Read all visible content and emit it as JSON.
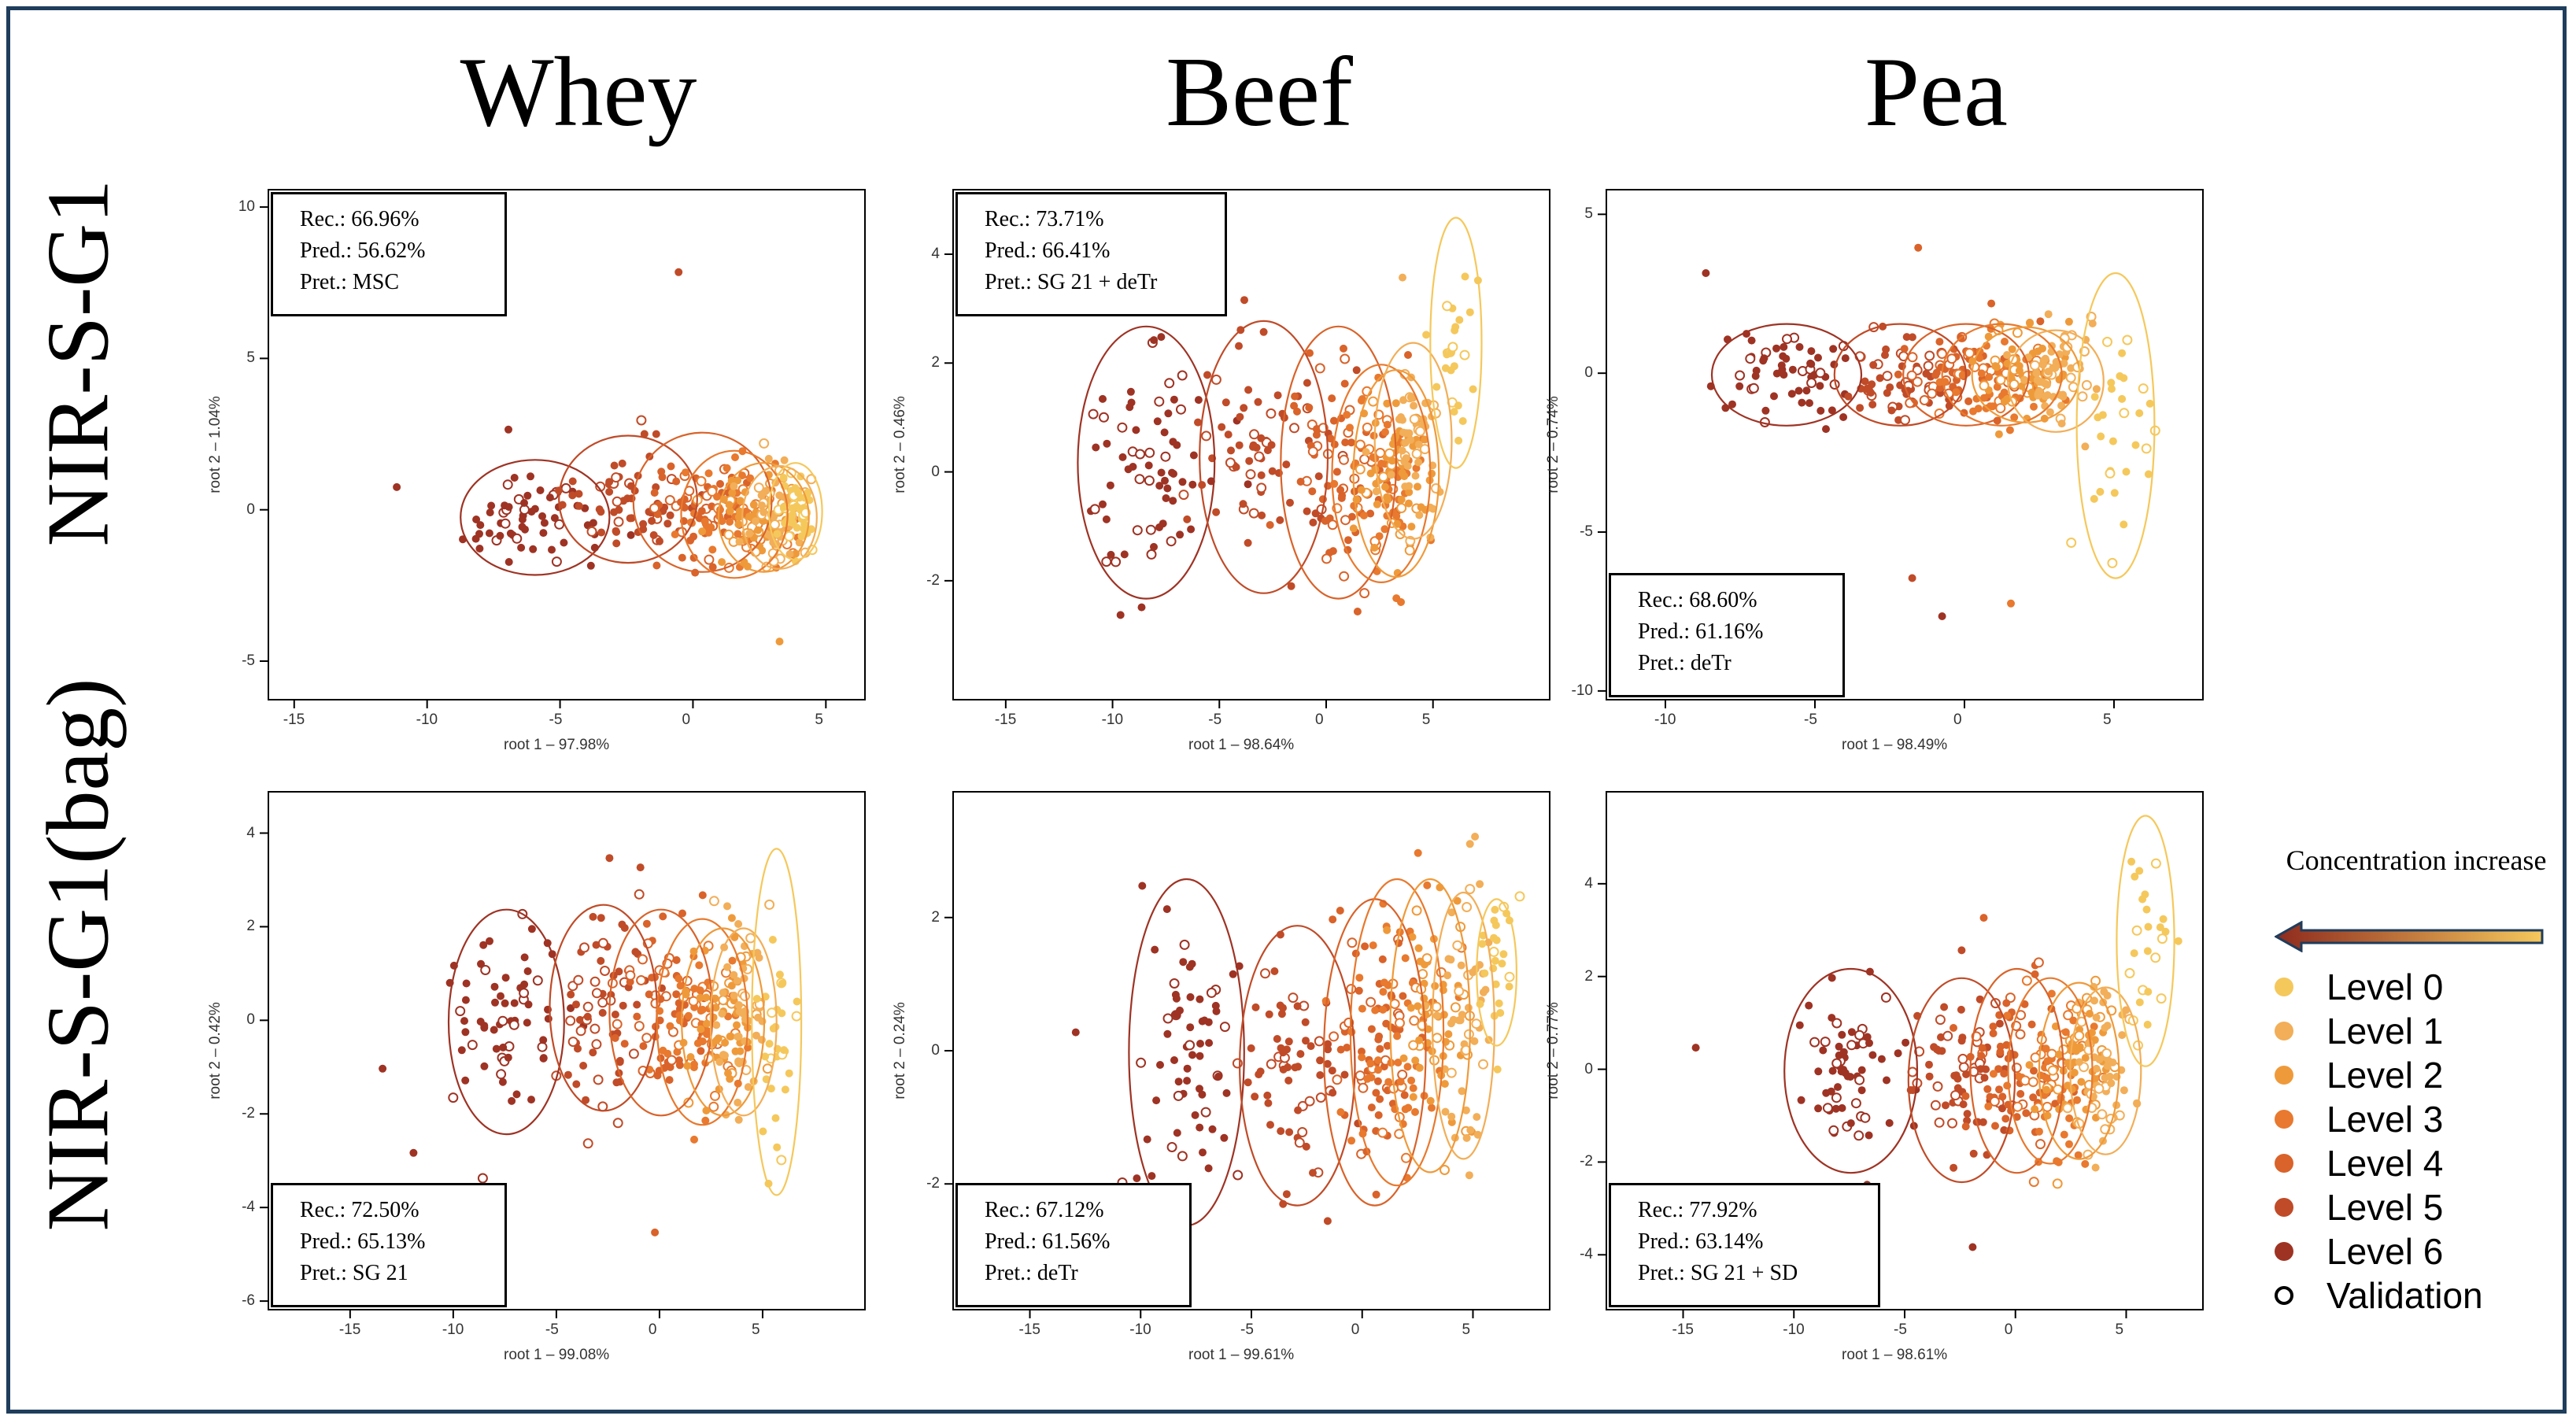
{
  "figure": {
    "column_titles": [
      "Whey",
      "Beef",
      "Pea"
    ],
    "row_titles": [
      "NIR-S-G1",
      "NIR-S-G1(bag)"
    ]
  },
  "legend": {
    "title": "Concentration increase",
    "items": [
      {
        "label": "Level 0",
        "color": "#f5c85c"
      },
      {
        "label": "Level 1",
        "color": "#f2ae58"
      },
      {
        "label": "Level 2",
        "color": "#ef9a3a"
      },
      {
        "label": "Level 3",
        "color": "#e8792e"
      },
      {
        "label": "Level 4",
        "color": "#d9632a"
      },
      {
        "label": "Level 5",
        "color": "#c04b28"
      },
      {
        "label": "Level 6",
        "color": "#9e3324"
      },
      {
        "label": "Validation",
        "color": "#000000",
        "hollow": true
      }
    ],
    "arrow_gradient": [
      "#8e2a1e",
      "#f5c85c"
    ]
  },
  "chart_data": [
    {
      "id": "whey-s-g1",
      "type": "scatter",
      "protein": "Whey",
      "device": "NIR-S-G1",
      "xlabel": "root 1 – 97.98%",
      "ylabel": "root 2 – 1.04%",
      "xlim": [
        -16,
        6.5
      ],
      "ylim": [
        -6.3,
        10.6
      ],
      "xticks": [
        -15,
        -10,
        -5,
        0,
        5
      ],
      "yticks": [
        -5,
        0,
        5,
        10
      ],
      "info": {
        "rec": "Rec.: 66.96%",
        "pred": "Pred.: 56.62%",
        "pret": "Pret.: MSC"
      },
      "info_position": "top-left",
      "groups": [
        {
          "level": 6,
          "center": [
            -6.0,
            -0.2
          ],
          "rx": 2.8,
          "ry": 1.9,
          "sx": 1.3,
          "sy": 0.8,
          "n": 60
        },
        {
          "level": 5,
          "center": [
            -2.5,
            0.4
          ],
          "rx": 2.6,
          "ry": 2.1,
          "sx": 1.2,
          "sy": 0.9,
          "n": 60
        },
        {
          "level": 4,
          "center": [
            0.3,
            0.3
          ],
          "rx": 2.6,
          "ry": 2.3,
          "sx": 1.1,
          "sy": 0.9,
          "n": 60
        },
        {
          "level": 3,
          "center": [
            1.5,
            -0.1
          ],
          "rx": 2.0,
          "ry": 2.1,
          "sx": 0.9,
          "sy": 0.8,
          "n": 60
        },
        {
          "level": 2,
          "center": [
            2.6,
            -0.2
          ],
          "rx": 1.7,
          "ry": 1.8,
          "sx": 0.8,
          "sy": 0.7,
          "n": 60
        },
        {
          "level": 1,
          "center": [
            3.2,
            -0.2
          ],
          "rx": 1.4,
          "ry": 1.7,
          "sx": 0.6,
          "sy": 0.7,
          "n": 60
        },
        {
          "level": 0,
          "center": [
            3.8,
            0.0
          ],
          "rx": 1.0,
          "ry": 1.6,
          "sx": 0.4,
          "sy": 0.6,
          "n": 50
        }
      ],
      "outliers": [
        [
          -0.6,
          7.9,
          5
        ],
        [
          -11.2,
          0.8,
          6
        ],
        [
          3.2,
          -4.3,
          2
        ],
        [
          -7.0,
          2.7,
          6
        ]
      ]
    },
    {
      "id": "beef-s-g1",
      "type": "scatter",
      "protein": "Beef",
      "device": "NIR-S-G1",
      "xlabel": "root 1 – 98.64%",
      "ylabel": "root 2 – 0.46%",
      "xlim": [
        -17.5,
        10.5
      ],
      "ylim": [
        -4.2,
        5.2
      ],
      "xticks": [
        -15,
        -10,
        -5,
        0,
        5
      ],
      "yticks": [
        -2,
        0,
        2,
        4
      ],
      "info": {
        "rec": "Rec.: 73.71%",
        "pred": "Pred.: 66.41%",
        "pret": "Pret.: SG 21 + deTr"
      },
      "info_position": "top-left",
      "groups": [
        {
          "level": 6,
          "center": [
            -8.5,
            0.2
          ],
          "rx": 3.2,
          "ry": 2.5,
          "sx": 1.5,
          "sy": 1.1,
          "n": 70
        },
        {
          "level": 5,
          "center": [
            -3.0,
            0.3
          ],
          "rx": 3.0,
          "ry": 2.5,
          "sx": 1.4,
          "sy": 1.0,
          "n": 70
        },
        {
          "level": 4,
          "center": [
            0.5,
            0.2
          ],
          "rx": 2.7,
          "ry": 2.5,
          "sx": 1.3,
          "sy": 1.0,
          "n": 70
        },
        {
          "level": 3,
          "center": [
            2.5,
            0.0
          ],
          "rx": 2.3,
          "ry": 2.0,
          "sx": 1.0,
          "sy": 0.9,
          "n": 70
        },
        {
          "level": 2,
          "center": [
            3.2,
            0.0
          ],
          "rx": 2.0,
          "ry": 1.9,
          "sx": 0.9,
          "sy": 0.8,
          "n": 60
        },
        {
          "level": 1,
          "center": [
            4.0,
            0.6
          ],
          "rx": 1.8,
          "ry": 1.8,
          "sx": 0.8,
          "sy": 0.7,
          "n": 50
        },
        {
          "level": 0,
          "center": [
            6.0,
            2.4
          ],
          "rx": 1.2,
          "ry": 2.3,
          "sx": 0.5,
          "sy": 0.9,
          "n": 25
        }
      ],
      "outliers": [
        [
          -9.7,
          -2.6,
          6
        ],
        [
          3.5,
          3.6,
          1
        ],
        [
          -3.0,
          2.6,
          5
        ]
      ]
    },
    {
      "id": "pea-s-g1",
      "type": "scatter",
      "protein": "Pea",
      "device": "NIR-S-G1",
      "xlabel": "root 1 – 98.49%",
      "ylabel": "root 2 – 0.74%",
      "xlim": [
        -12.0,
        8.0
      ],
      "ylim": [
        -10.3,
        5.8
      ],
      "xticks": [
        -10,
        -5,
        0,
        5
      ],
      "yticks": [
        -10,
        -5,
        0,
        5
      ],
      "info": {
        "rec": "Rec.: 68.60%",
        "pred": "Pred.: 61.16%",
        "pret": "Pret.: deTr"
      },
      "info_position": "bottom-left",
      "groups": [
        {
          "level": 6,
          "center": [
            -6.0,
            0.0
          ],
          "rx": 2.5,
          "ry": 1.6,
          "sx": 1.2,
          "sy": 0.7,
          "n": 60
        },
        {
          "level": 5,
          "center": [
            -2.2,
            0.0
          ],
          "rx": 2.2,
          "ry": 1.6,
          "sx": 1.0,
          "sy": 0.7,
          "n": 60
        },
        {
          "level": 4,
          "center": [
            0.0,
            0.0
          ],
          "rx": 2.1,
          "ry": 1.6,
          "sx": 1.0,
          "sy": 0.7,
          "n": 60
        },
        {
          "level": 3,
          "center": [
            1.2,
            0.0
          ],
          "rx": 2.0,
          "ry": 1.6,
          "sx": 0.9,
          "sy": 0.7,
          "n": 60
        },
        {
          "level": 2,
          "center": [
            2.0,
            0.0
          ],
          "rx": 1.8,
          "ry": 1.5,
          "sx": 0.8,
          "sy": 0.7,
          "n": 60
        },
        {
          "level": 1,
          "center": [
            3.0,
            -0.2
          ],
          "rx": 1.6,
          "ry": 1.6,
          "sx": 0.7,
          "sy": 0.8,
          "n": 60
        },
        {
          "level": 0,
          "center": [
            5.0,
            -1.6
          ],
          "rx": 1.3,
          "ry": 4.8,
          "sx": 0.5,
          "sy": 2.0,
          "n": 30
        }
      ],
      "outliers": [
        [
          -1.8,
          -6.4,
          5
        ],
        [
          -0.8,
          -7.6,
          6
        ],
        [
          1.5,
          -7.2,
          3
        ],
        [
          -1.6,
          4.0,
          4
        ],
        [
          -8.7,
          3.2,
          6
        ]
      ]
    },
    {
      "id": "whey-bag",
      "type": "scatter",
      "protein": "Whey",
      "device": "NIR-S-G1(bag)",
      "xlabel": "root 1 – 99.08%",
      "ylabel": "root 2 – 0.42%",
      "xlim": [
        -19.0,
        10.0
      ],
      "ylim": [
        -6.2,
        4.9
      ],
      "xticks": [
        -15,
        -10,
        -5,
        0,
        5
      ],
      "yticks": [
        -6,
        -4,
        -2,
        0,
        2,
        4
      ],
      "info": {
        "rec": "Rec.: 72.50%",
        "pred": "Pred.: 65.13%",
        "pret": "Pret.: SG 21"
      },
      "info_position": "bottom-left",
      "groups": [
        {
          "level": 6,
          "center": [
            -7.5,
            0.0
          ],
          "rx": 2.8,
          "ry": 2.4,
          "sx": 1.3,
          "sy": 1.1,
          "n": 65
        },
        {
          "level": 5,
          "center": [
            -2.8,
            0.3
          ],
          "rx": 2.6,
          "ry": 2.2,
          "sx": 1.2,
          "sy": 1.0,
          "n": 65
        },
        {
          "level": 4,
          "center": [
            0.0,
            0.2
          ],
          "rx": 2.5,
          "ry": 2.2,
          "sx": 1.1,
          "sy": 1.0,
          "n": 65
        },
        {
          "level": 3,
          "center": [
            2.0,
            0.0
          ],
          "rx": 2.2,
          "ry": 2.2,
          "sx": 1.0,
          "sy": 0.9,
          "n": 65
        },
        {
          "level": 2,
          "center": [
            3.0,
            0.0
          ],
          "rx": 2.0,
          "ry": 2.0,
          "sx": 0.9,
          "sy": 0.9,
          "n": 60
        },
        {
          "level": 1,
          "center": [
            4.0,
            0.0
          ],
          "rx": 1.6,
          "ry": 2.0,
          "sx": 0.7,
          "sy": 0.9,
          "n": 55
        },
        {
          "level": 0,
          "center": [
            5.6,
            0.0
          ],
          "rx": 1.2,
          "ry": 3.7,
          "sx": 0.5,
          "sy": 1.4,
          "n": 30
        }
      ],
      "outliers": [
        [
          -13.5,
          -1.0,
          6
        ],
        [
          -12.0,
          -2.8,
          6
        ],
        [
          -0.3,
          -4.5,
          4
        ],
        [
          -1.0,
          3.3,
          5
        ],
        [
          -2.5,
          3.5,
          5
        ]
      ]
    },
    {
      "id": "beef-bag",
      "type": "scatter",
      "protein": "Beef",
      "device": "NIR-S-G1(bag)",
      "xlabel": "root 1 – 99.61%",
      "ylabel": "root 2 – 0.24%",
      "xlim": [
        -18.5,
        8.5
      ],
      "ylim": [
        -3.9,
        3.9
      ],
      "xticks": [
        -15,
        -10,
        -5,
        0,
        5
      ],
      "yticks": [
        -2,
        0,
        2
      ],
      "info": {
        "rec": "Rec.: 67.12%",
        "pred": "Pred.: 61.56%",
        "pret": "Pret.: deTr"
      },
      "info_position": "bottom-left",
      "groups": [
        {
          "level": 6,
          "center": [
            -8.0,
            0.0
          ],
          "rx": 2.6,
          "ry": 2.6,
          "sx": 1.3,
          "sy": 1.1,
          "n": 65
        },
        {
          "level": 5,
          "center": [
            -3.0,
            -0.2
          ],
          "rx": 2.6,
          "ry": 2.1,
          "sx": 1.2,
          "sy": 0.9,
          "n": 65
        },
        {
          "level": 4,
          "center": [
            0.5,
            0.0
          ],
          "rx": 2.3,
          "ry": 2.3,
          "sx": 1.1,
          "sy": 1.0,
          "n": 65
        },
        {
          "level": 3,
          "center": [
            1.5,
            0.3
          ],
          "rx": 2.1,
          "ry": 2.3,
          "sx": 1.0,
          "sy": 1.0,
          "n": 65
        },
        {
          "level": 2,
          "center": [
            3.0,
            0.4
          ],
          "rx": 1.8,
          "ry": 2.2,
          "sx": 0.9,
          "sy": 0.9,
          "n": 60
        },
        {
          "level": 1,
          "center": [
            4.5,
            0.4
          ],
          "rx": 1.4,
          "ry": 2.0,
          "sx": 0.7,
          "sy": 0.9,
          "n": 50
        },
        {
          "level": 0,
          "center": [
            6.0,
            1.2
          ],
          "rx": 0.9,
          "ry": 1.1,
          "sx": 0.5,
          "sy": 0.6,
          "n": 25
        }
      ],
      "outliers": [
        [
          -13.0,
          0.3,
          6
        ],
        [
          -10.0,
          2.5,
          6
        ]
      ]
    },
    {
      "id": "pea-bag",
      "type": "scatter",
      "protein": "Pea",
      "device": "NIR-S-G1(bag)",
      "xlabel": "root 1 – 98.61%",
      "ylabel": "root 2 – 0.77%",
      "xlim": [
        -18.5,
        8.5
      ],
      "ylim": [
        -5.2,
        6.0
      ],
      "xticks": [
        -15,
        -10,
        -5,
        0,
        5
      ],
      "yticks": [
        -4,
        -2,
        0,
        2,
        4
      ],
      "info": {
        "rec": "Rec.: 77.92%",
        "pred": "Pred.: 63.14%",
        "pret": "Pret.: SG 21 + SD"
      },
      "info_position": "bottom-left",
      "groups": [
        {
          "level": 6,
          "center": [
            -7.5,
            0.0
          ],
          "rx": 3.0,
          "ry": 2.2,
          "sx": 1.4,
          "sy": 1.0,
          "n": 65
        },
        {
          "level": 5,
          "center": [
            -2.5,
            -0.2
          ],
          "rx": 2.4,
          "ry": 2.2,
          "sx": 1.1,
          "sy": 1.0,
          "n": 65
        },
        {
          "level": 4,
          "center": [
            0.0,
            0.0
          ],
          "rx": 2.1,
          "ry": 2.2,
          "sx": 1.0,
          "sy": 1.0,
          "n": 65
        },
        {
          "level": 3,
          "center": [
            1.5,
            0.0
          ],
          "rx": 1.9,
          "ry": 2.0,
          "sx": 0.9,
          "sy": 0.9,
          "n": 65
        },
        {
          "level": 2,
          "center": [
            2.8,
            0.0
          ],
          "rx": 1.8,
          "ry": 1.9,
          "sx": 0.8,
          "sy": 0.8,
          "n": 60
        },
        {
          "level": 1,
          "center": [
            4.0,
            0.0
          ],
          "rx": 1.6,
          "ry": 1.8,
          "sx": 0.7,
          "sy": 0.8,
          "n": 55
        },
        {
          "level": 0,
          "center": [
            5.8,
            2.8
          ],
          "rx": 1.3,
          "ry": 2.7,
          "sx": 0.5,
          "sy": 1.1,
          "n": 25
        }
      ],
      "outliers": [
        [
          -14.5,
          0.5,
          6
        ],
        [
          -2.0,
          -3.8,
          6
        ],
        [
          -1.5,
          3.3,
          4
        ],
        [
          -2.5,
          2.6,
          5
        ]
      ]
    }
  ]
}
